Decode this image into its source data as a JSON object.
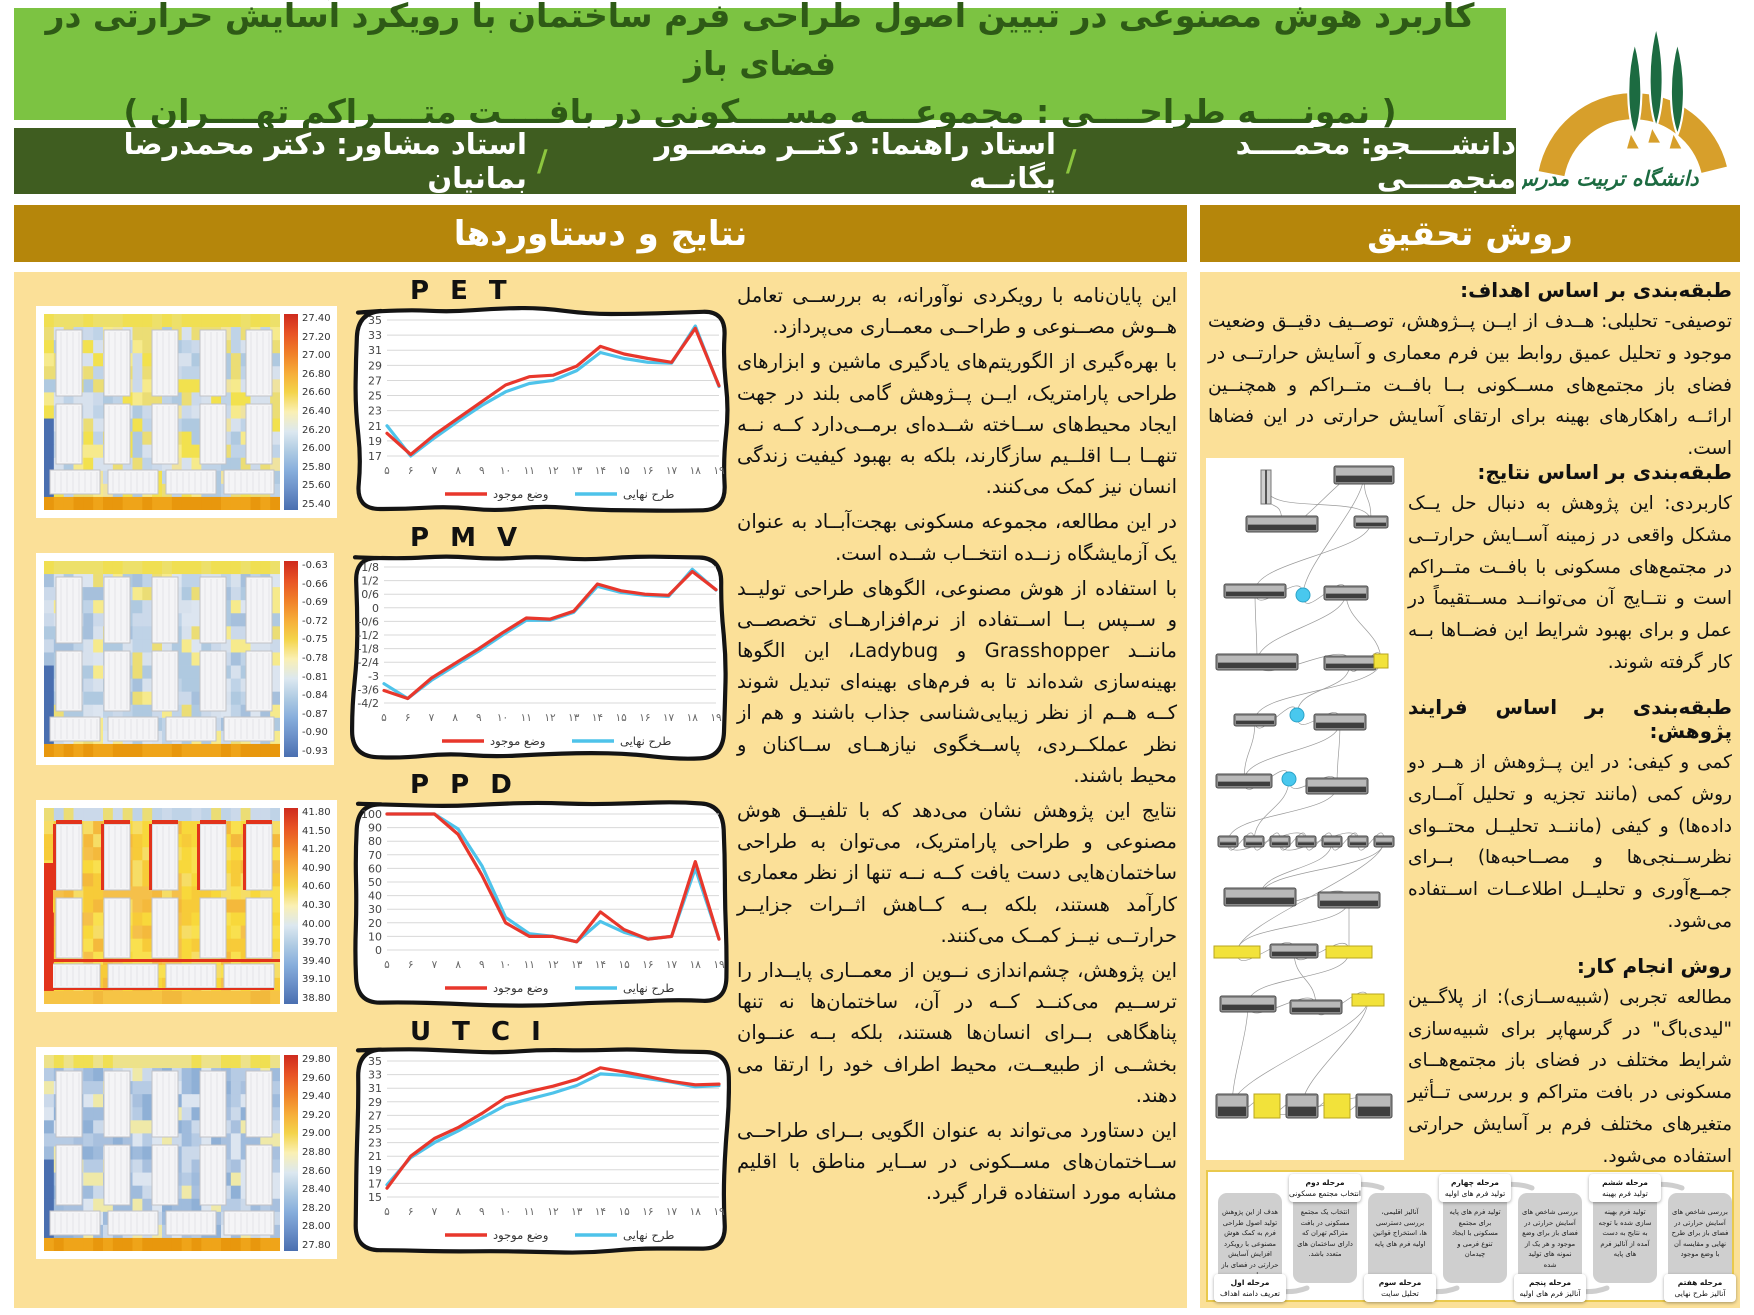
{
  "poster": {
    "title_line1": "کاربرد هوش مصنوعی در تبیین اصول طراحی فرم ساختمان با رویکرد آسایش حرارتی در فضای باز",
    "title_line2": "( نمونــــه طراحــــی : مجموعــــه مســــکونی در بافــــت متــــراکم تهــــران )",
    "byline_parts": [
      "دانشــــجو: محمــــد منجمــــی",
      "استاد راهنما: دکتــر منصــور یگانــه",
      "استاد مشاور: دکتر محمدرضا بمانیان"
    ],
    "logo_caption": "دانشگاه تربیت مدرس"
  },
  "left_panel": {
    "header": "نتایج و دستاوردها",
    "paragraphs": [
      "این پایان‌نامه با رویکردی نوآورانه، به بررســی تعامل هــوش مصــنوعی و طراحــی معمــاری می‌پردازد.",
      "با بهره‌گیری از الگوریتم‌های یادگیری ماشین و ابزارهای طراحی پارامتریک، ایــن پــژوهش گامی بلند در جهت ایجاد محیط‌های ســاخته شــده‌ای برمــی‌دارد کــه نــه تنهــا بــا اقلــیم سازگارند، بلکه به بهبود کیفیت زندگی انسان نیز کمک می‌کنند.",
      "در این مطالعه، مجموعه مسکونی بهجت‌آبــاد به عنوان یک آزمایشگاه زنــده انتخــاب شــده است.",
      "با استفاده از هوش مصنوعی، الگوهای طراحی تولیــد و ســپس بــا اســتفاده از نرم‌افزارهــای تخصصــی ماننــد Grasshopper و Ladybug، این الگوها بهینه‌سازی شده‌اند تا به فرم‌های بهینه‌ای تبدیل شوند کــه هــم از نظر زیبایی‌شناسی جذاب باشند و هم از نظر عملکــردی، پاســخگوی نیازهــای ســاکنان و محیط باشند.",
      "نتایج این پژوهش نشان می‌دهد که با تلفیــق هوش مصنوعی و طراحی پارامتریک، می‌توان به طراحی ساختمان‌هایی دست یافت کــه نــه تنها از نظر معماری کارآمد هستند، بلکه بــه کــاهش اثــرات جزایــر حرارتــی نیــز کمــک می‌کنند.",
      "این پژوهش، چشم‌اندازی نــوین از معمــاری پایــدار را ترســیم می‌کنــد کــه در آن، ساختمان‌ها نه تنها پناهگاهی بــرای انسان‌ها هستند، بلکه بــه عنــوان بخشــی از طبیعــت، محیط اطراف خود را ارتقا می دهند.",
      "این دستاورد می‌تواند به عنوان الگویی بــرای طراحــی ســاختمان‌های مســکونی در ســایر مناطق با اقلیم مشابه مورد استفاده قرار گیرد."
    ]
  },
  "right_panel": {
    "header": "روش تحقیق",
    "sections": [
      {
        "heading": "طبقه‌بندی بر اساس اهداف:",
        "body": "توصیفی- تحلیلی: هــدف از ایــن پــژوهش، توصــیف دقیــق وضعیت موجود و تحلیل عمیق روابط بین فرم معماری و آسایش حرارتــی در فضای باز مجتمع‌های مســکونی بــا بافــت متــراکم و همچنــین ارائــه راهکارهای بهینه برای ارتقای آسایش حرارتی در این فضاها است."
      },
      {
        "heading": "طبقه‌بندی بر اساس نتایج:",
        "body": "کاربردی: این پژوهش به دنبال حل یــک مشکل واقعی در زمینه آســایش حرارتــی در مجتمع‌های مسکونی با بافــت متــراکم است و نتــایج آن می‌توانــد مســتقیماً در عمل و برای بهبود شرایط این فضــاها بــه کار گرفته شوند."
      },
      {
        "heading": "طبقه‌بندی بر اساس فرایند پژوهش:",
        "body": "کمی و کیفی: در این پــژوهش از هــر دو روش کمی (مانند تجزیه و تحلیل آمــاری داده‌ها) و کیفی (ماننــد تحلیــل محتــوای نظرســنجی‌ها و مصــاحبه‌ها) بــرای جمــع‌آوری و تحلیــل اطلاعــات اســتفاده می‌شود."
      },
      {
        "heading": "روش انجام کار:",
        "body": "مطالعه تجربی (شبیه‌ســازی): از پلاگــین \"لیدی‌باگ\" در گرسهاپر برای شبیه‌سازی شرایط مختلف در فضای باز مجتمع‌هــای مسکونی در بافت متراکم و بررسی تــأثیر متغیرهای مختلف فرم بر آسایش حرارتی استفاده می‌شود."
      }
    ]
  },
  "flowchart": {
    "stages": [
      {
        "label": "مرحله اول",
        "sub": "تعریف دامنه اهداف",
        "pos": "bottom",
        "body": "هدف از این پژوهش تولید اصول طراحی فرم به کمک هوش مصنوعی با رویکرد افزایش آسایش حرارتی در فضای باز است."
      },
      {
        "label": "مرحله دوم",
        "sub": "انتخاب مجتمع مسکونی",
        "pos": "top",
        "body": "انتخاب یک مجتمع مسکونی در بافت متراکم تهران که دارای ساختمان های متعدد باشد."
      },
      {
        "label": "مرحله سوم",
        "sub": "تحلیل سایت",
        "pos": "bottom",
        "body": "آنالیز اقلیمی، بررسی دسترسی ها، استخراج قوانین اولیه فرم های پایه"
      },
      {
        "label": "مرحله چهارم",
        "sub": "تولید فرم های اولیه",
        "pos": "top",
        "body": "تولید فرم های پایه برای مجتمع مسکونی با ایجاد تنوع فرمی و چیدمان"
      },
      {
        "label": "مرحله پنجم",
        "sub": "آنالیز فرم های اولیه",
        "pos": "bottom",
        "body": "بررسی شاخص های آسایش حرارتی در فضای باز برای وضع موجود و هر یک از نمونه های تولید شده"
      },
      {
        "label": "مرحله ششم",
        "sub": "تولید فرم بهینه",
        "pos": "top",
        "body": "تولید فرم بهینه سازی شده با توجه به نتایج به دست آمده از آنالیز فرم های پایه"
      },
      {
        "label": "مرحله هفتم",
        "sub": "آنالیز طرح نهایی",
        "pos": "bottom",
        "body": "بررسی شاخص های آسایش حرارتی در فضای باز برای طرح نهایی و مقایسه آن با وضع موجود"
      }
    ]
  },
  "legend": {
    "existing": "وضع موجود",
    "final": "طرح نهایی"
  },
  "colors": {
    "header_green": "#7CC342",
    "header_green_text": "#2E5A16",
    "dark_green": "#3F5D20",
    "gold": "#B5860B",
    "panel_yellow": "#FBE098",
    "accent_green": "#8DC63F",
    "line_red": "#E8372C",
    "line_blue": "#4EC3EA",
    "colorbar": [
      "#CE2B1E",
      "#E85325",
      "#F07F28",
      "#F6AC38",
      "#F4D44A",
      "#FAF0B4",
      "#DCE8F0",
      "#AFCBE3",
      "#87AEDC",
      "#6A8FC8",
      "#4A6FB0"
    ]
  },
  "heatmaps": {
    "pet": {
      "base": [
        "#EBDD75",
        "#F2E14E",
        "#BFD3E7",
        "#AFC9E0",
        "#D7E1ED",
        "#F6EA8C",
        "#CBD9EA",
        "#EFE3A0"
      ],
      "top": [
        "#F0DF52",
        "#EDE06A"
      ],
      "bottom": [
        "#E8970D",
        "#EFA419"
      ],
      "left": "#4A6FB0",
      "accent": ""
    },
    "pmv": {
      "base": [
        "#AFC9E0",
        "#BFD3E7",
        "#CBD9EA",
        "#D7E1ED",
        "#EBDD75",
        "#F6EA8C",
        "#A6C0DC",
        "#DCE5F0"
      ],
      "top": [
        "#F0DF52",
        "#EDE06A"
      ],
      "bottom": [
        "#E8970D",
        "#EFA419"
      ],
      "left": "#4A6FB0",
      "accent": ""
    },
    "ppd": {
      "base": [
        "#F8D83B",
        "#F7CB39",
        "#F5C04A",
        "#F6DD66",
        "#F4B93C",
        "#F9E04F"
      ],
      "top": [
        "#CBD9EA",
        "#EBDD75",
        "#BFD3E7"
      ],
      "bottom": [
        "#F6C445",
        "#F2B93C"
      ],
      "left": "#E2331B",
      "accent": "#E2331B"
    },
    "utci": {
      "base": [
        "#9FBBDC",
        "#8FB0D6",
        "#B6CBE4",
        "#A8C0DE",
        "#CBD9EA",
        "#DCE5F0",
        "#EFE9A8"
      ],
      "top": [
        "#EDE28A",
        "#F0DF52"
      ],
      "bottom": [
        "#E8970D",
        "#EFA419"
      ],
      "left": "#4A6FB0",
      "accent": ""
    }
  },
  "chart_data": [
    {
      "type": "line",
      "title": "P E T",
      "heatmap_style": "pet",
      "x_labels": [
        "۵",
        "۶",
        "۷",
        "۸",
        "۹",
        "۱۰",
        "۱۱",
        "۱۲",
        "۱۳",
        "۱۴",
        "۱۵",
        "۱۶",
        "۱۷",
        "۱۸",
        "۱۹"
      ],
      "y_ticks": {
        "labels": [
          "35",
          "33",
          "31",
          "29",
          "27",
          "25",
          "23",
          "21",
          "19",
          "17"
        ],
        "values": [
          35,
          33,
          31,
          29,
          27,
          25,
          23,
          21,
          19,
          17
        ]
      },
      "ylim": [
        17,
        35
      ],
      "series": [
        {
          "name": "وضع موجود",
          "color": "#E8372C",
          "values": [
            20.0,
            17.2,
            19.8,
            22.0,
            24.2,
            26.4,
            27.5,
            27.7,
            28.9,
            31.5,
            30.5,
            29.9,
            29.4,
            33.9,
            26.3
          ]
        },
        {
          "name": "طرح نهایی",
          "color": "#4EC3EA",
          "values": [
            21.0,
            17.0,
            19.4,
            21.6,
            23.7,
            25.5,
            26.6,
            27.0,
            28.3,
            30.7,
            29.9,
            29.4,
            29.3,
            34.2,
            26.2
          ]
        }
      ],
      "colorbar_ticks": [
        "27.40",
        "27.20",
        "27.00",
        "26.80",
        "26.60",
        "26.40",
        "26.20",
        "26.00",
        "25.80",
        "25.60",
        "25.40"
      ]
    },
    {
      "type": "line",
      "title": "P M V",
      "heatmap_style": "pmv",
      "x_labels": [
        "۵",
        "۶",
        "۷",
        "۸",
        "۹",
        "۱۰",
        "۱۱",
        "۱۲",
        "۱۳",
        "۱۴",
        "۱۵",
        "۱۶",
        "۱۷",
        "۱۸",
        "۱۹"
      ],
      "y_ticks": {
        "labels": [
          "1/8",
          "1/2",
          "0/6",
          "0",
          "-0/6",
          "-1/2",
          "-1/8",
          "-2/4",
          "-3",
          "-3/6",
          "-4/2"
        ],
        "values": [
          1.8,
          1.2,
          0.6,
          0,
          -0.6,
          -1.2,
          -1.8,
          -2.4,
          -3,
          -3.6,
          -4.2
        ]
      },
      "ylim": [
        -4.2,
        1.8
      ],
      "series": [
        {
          "name": "وضع موجود",
          "color": "#E8372C",
          "values": [
            -3.65,
            -4.0,
            -3.1,
            -2.45,
            -1.8,
            -1.1,
            -0.45,
            -0.5,
            -0.15,
            1.05,
            0.75,
            0.6,
            0.55,
            1.6,
            0.8
          ]
        },
        {
          "name": "طرح نهایی",
          "color": "#4EC3EA",
          "values": [
            -3.35,
            -4.0,
            -3.2,
            -2.55,
            -1.9,
            -1.2,
            -0.55,
            -0.55,
            -0.2,
            0.95,
            0.68,
            0.55,
            0.5,
            1.7,
            0.78
          ]
        }
      ],
      "colorbar_ticks": [
        "-0.63",
        "-0.66",
        "-0.69",
        "-0.72",
        "-0.75",
        "-0.78",
        "-0.81",
        "-0.84",
        "-0.87",
        "-0.90",
        "-0.93"
      ]
    },
    {
      "type": "line",
      "title": "P P D",
      "heatmap_style": "ppd",
      "x_labels": [
        "۵",
        "۶",
        "۷",
        "۸",
        "۹",
        "۱۰",
        "۱۱",
        "۱۲",
        "۱۳",
        "۱۴",
        "۱۵",
        "۱۶",
        "۱۷",
        "۱۸",
        "۱۹"
      ],
      "y_ticks": {
        "labels": [
          "100",
          "90",
          "80",
          "70",
          "60",
          "50",
          "40",
          "30",
          "20",
          "10",
          "0"
        ],
        "values": [
          100,
          90,
          80,
          70,
          60,
          50,
          40,
          30,
          20,
          10,
          0
        ]
      },
      "ylim": [
        0,
        100
      ],
      "series": [
        {
          "name": "وضع موجود",
          "color": "#E8372C",
          "values": [
            100,
            100,
            100,
            85,
            55,
            20,
            10,
            10,
            6,
            28,
            15,
            8,
            10,
            65,
            8
          ]
        },
        {
          "name": "طرح نهایی",
          "color": "#4EC3EA",
          "values": [
            100,
            100,
            100,
            89,
            62,
            24,
            12,
            10,
            6,
            21,
            13,
            8,
            10,
            60,
            8
          ]
        }
      ],
      "colorbar_ticks": [
        "41.80",
        "41.50",
        "41.20",
        "40.90",
        "40.60",
        "40.30",
        "40.00",
        "39.70",
        "39.40",
        "39.10",
        "38.80"
      ]
    },
    {
      "type": "line",
      "title": "U T C I",
      "heatmap_style": "utci",
      "x_labels": [
        "۵",
        "۶",
        "۷",
        "۸",
        "۹",
        "۱۰",
        "۱۱",
        "۱۲",
        "۱۳",
        "۱۴",
        "۱۵",
        "۱۶",
        "۱۷",
        "۱۸",
        "۱۹"
      ],
      "y_ticks": {
        "labels": [
          "35",
          "33",
          "31",
          "29",
          "27",
          "25",
          "23",
          "21",
          "19",
          "17",
          "15"
        ],
        "values": [
          35,
          33,
          31,
          29,
          27,
          25,
          23,
          21,
          19,
          17,
          15
        ]
      },
      "ylim": [
        15,
        35
      ],
      "series": [
        {
          "name": "وضع موجود",
          "color": "#E8372C",
          "values": [
            16.3,
            21.0,
            23.6,
            25.2,
            27.3,
            29.6,
            30.5,
            31.3,
            32.3,
            34.0,
            33.4,
            32.7,
            32.0,
            31.5,
            31.6
          ]
        },
        {
          "name": "طرح نهایی",
          "color": "#4EC3EA",
          "values": [
            16.8,
            20.8,
            23.0,
            24.7,
            26.6,
            28.5,
            29.4,
            30.3,
            31.4,
            33.1,
            32.9,
            32.4,
            31.9,
            31.2,
            31.4
          ]
        }
      ],
      "colorbar_ticks": [
        "29.80",
        "29.60",
        "29.40",
        "29.20",
        "29.00",
        "28.80",
        "28.60",
        "28.40",
        "28.20",
        "28.00",
        "27.80"
      ]
    }
  ]
}
